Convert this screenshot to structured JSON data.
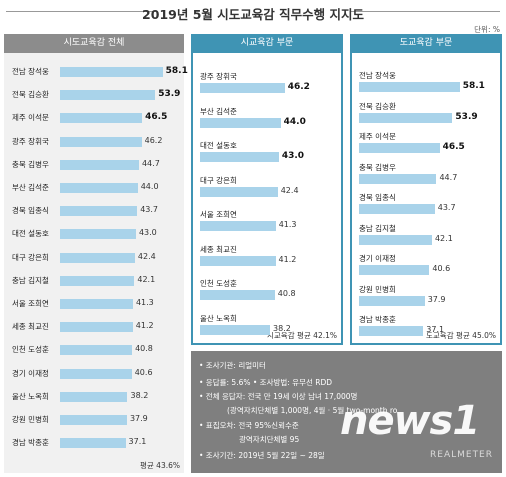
{
  "title": "2019년 5월 시도교육감 직무수행 지지도",
  "unit": "단위: %",
  "panels": {
    "all": {
      "header": "시도교육감 전체",
      "average": "평균 43.6%"
    },
    "si": {
      "header": "시교육감 부문",
      "average": "시교육감 평균 42.1%"
    },
    "do": {
      "header": "도교육감 부문",
      "average": "도교육감 평균 45.0%"
    }
  },
  "chart_data": [
    {
      "type": "bar",
      "title": "시도교육감 전체",
      "categories": [
        "전남 장석웅",
        "전북 김승환",
        "제주 이석문",
        "광주 장휘국",
        "충북 김병우",
        "부산 김석준",
        "경북 임종식",
        "대전 설동호",
        "대구 강은희",
        "충남 김지철",
        "서울 조희연",
        "세종 최교진",
        "인천 도성훈",
        "경기 이재정",
        "울산 노옥희",
        "강원 민병희",
        "경남 박종훈"
      ],
      "values": [
        58.1,
        53.9,
        46.5,
        46.2,
        44.7,
        44.0,
        43.7,
        43.0,
        42.4,
        42.1,
        41.3,
        41.2,
        40.8,
        40.6,
        38.2,
        37.9,
        37.1
      ],
      "value_labels": [
        "58.1",
        "53.9",
        "46.5",
        "46.2",
        "44.7",
        "44.0",
        "43.7",
        "43.0",
        "42.4",
        "42.1",
        "41.3",
        "41.2",
        "40.8",
        "40.6",
        "38.2",
        "37.9",
        "37.1"
      ],
      "bold": [
        true,
        true,
        true,
        false,
        false,
        false,
        false,
        false,
        false,
        false,
        false,
        false,
        false,
        false,
        false,
        false,
        false
      ]
    },
    {
      "type": "bar",
      "title": "시교육감 부문",
      "categories": [
        "광주 장휘국",
        "부산 김석준",
        "대전 설동호",
        "대구 강은희",
        "서울 조희연",
        "세종 최교진",
        "인천 도성훈",
        "울산 노옥희"
      ],
      "values": [
        46.2,
        44.0,
        43.0,
        42.4,
        41.3,
        41.2,
        40.8,
        38.2
      ],
      "value_labels": [
        "46.2",
        "44.0",
        "43.0",
        "42.4",
        "41.3",
        "41.2",
        "40.8",
        "38.2"
      ],
      "bold": [
        true,
        true,
        true,
        false,
        false,
        false,
        false,
        false
      ]
    },
    {
      "type": "bar",
      "title": "도교육감 부문",
      "categories": [
        "전남 장석웅",
        "전북 김승환",
        "제주 이석문",
        "충북 김병우",
        "경북 임종식",
        "충남 김지철",
        "경기 이재정",
        "강원 민병희",
        "경남 박종훈"
      ],
      "values": [
        58.1,
        53.9,
        46.5,
        44.7,
        43.7,
        42.1,
        40.6,
        37.9,
        37.1
      ],
      "value_labels": [
        "58.1",
        "53.9",
        "46.5",
        "44.7",
        "43.7",
        "42.1",
        "40.6",
        "37.9",
        "37.1"
      ],
      "bold": [
        true,
        true,
        true,
        false,
        false,
        false,
        false,
        false,
        false
      ]
    }
  ],
  "info": [
    "• 조사기관: 리얼미터",
    "• 응답률: 5.6% • 조사방법: 유무선 RDD",
    "• 전체 응답자: 전국 만 19세 이상 남녀 17,000명",
    "(광역자치단체별 1,000명, 4월 · 5월 two-month ro",
    "• 표집오차: 전국 95%신뢰수준",
    "광역자치단체별 95",
    "• 조사기간: 2019년 5월 22일 ~ 28일"
  ],
  "logo": {
    "text": "news1",
    "watermark": "REALMETER"
  },
  "colors": {
    "bar": "#a9d3ea",
    "header_gray": "#8c8c8c",
    "header_blue": "#3f94b4",
    "info_bg": "#7f7f7f"
  }
}
